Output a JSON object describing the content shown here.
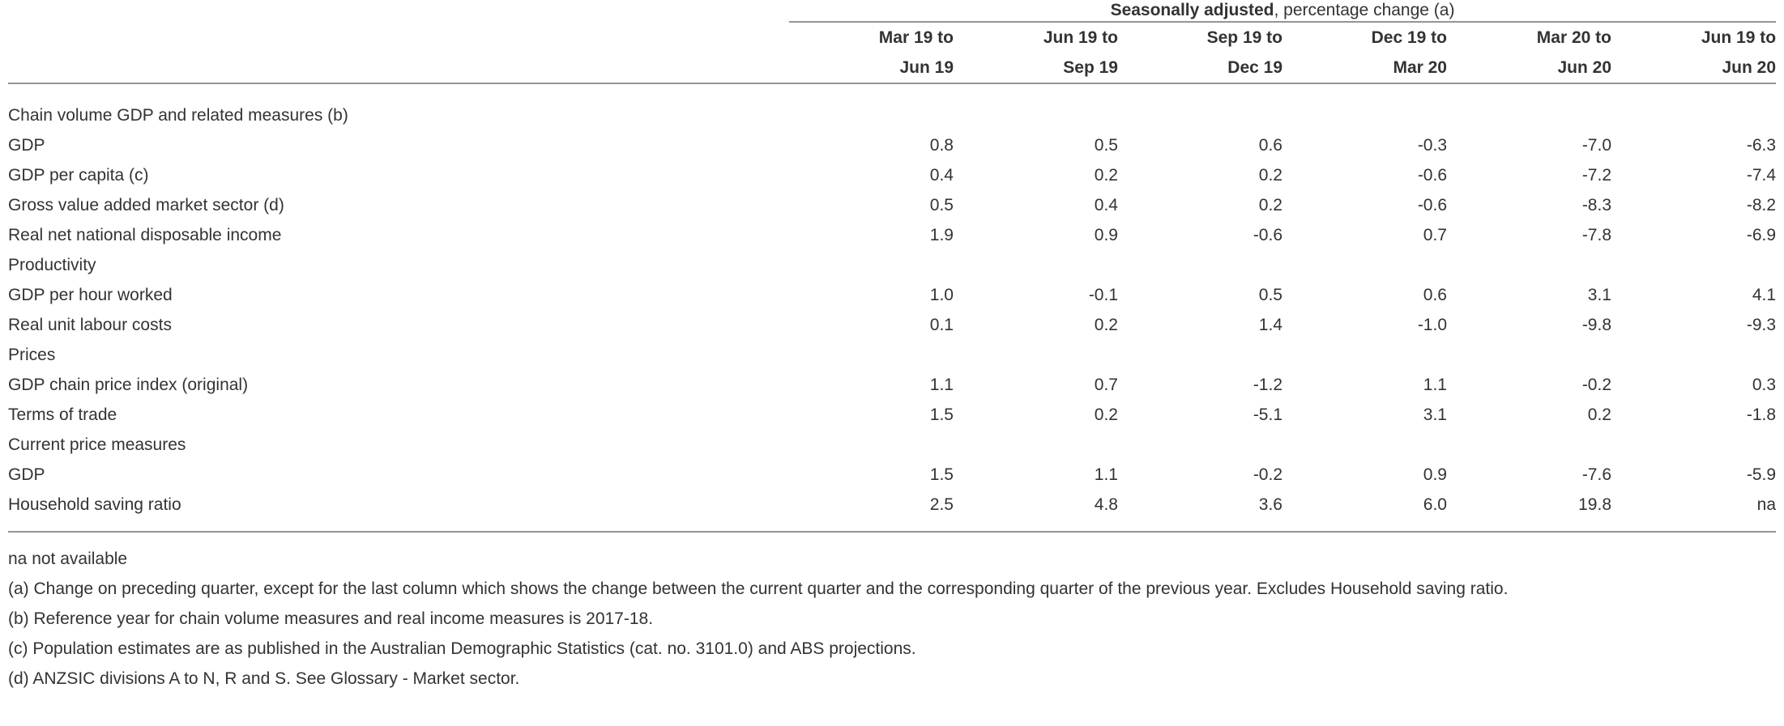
{
  "header": {
    "spanner_bold": "Seasonally adjusted",
    "spanner_rest": ", percentage change (a)",
    "columns": [
      {
        "line1": "Mar 19 to",
        "line2": "Jun 19"
      },
      {
        "line1": "Jun 19 to",
        "line2": "Sep 19"
      },
      {
        "line1": "Sep 19 to",
        "line2": "Dec 19"
      },
      {
        "line1": "Dec 19 to",
        "line2": "Mar 20"
      },
      {
        "line1": "Mar 20 to",
        "line2": "Jun 20"
      },
      {
        "line1": "Jun 19 to",
        "line2": "Jun 20"
      }
    ]
  },
  "sections": [
    {
      "label": "Chain volume GDP and related measures (b)",
      "rows": [
        {
          "label": "GDP",
          "values": [
            "0.8",
            "0.5",
            "0.6",
            "-0.3",
            "-7.0",
            "-6.3"
          ]
        },
        {
          "label": "GDP per capita (c)",
          "values": [
            "0.4",
            "0.2",
            "0.2",
            "-0.6",
            "-7.2",
            "-7.4"
          ]
        },
        {
          "label": "Gross value added market sector (d)",
          "values": [
            "0.5",
            "0.4",
            "0.2",
            "-0.6",
            "-8.3",
            "-8.2"
          ]
        },
        {
          "label": "Real net national disposable income",
          "values": [
            "1.9",
            "0.9",
            "-0.6",
            "0.7",
            "-7.8",
            "-6.9"
          ]
        }
      ]
    },
    {
      "label": "Productivity",
      "rows": [
        {
          "label": "GDP per hour worked",
          "values": [
            "1.0",
            "-0.1",
            "0.5",
            "0.6",
            "3.1",
            "4.1"
          ]
        },
        {
          "label": "Real unit labour costs",
          "values": [
            "0.1",
            "0.2",
            "1.4",
            "-1.0",
            "-9.8",
            "-9.3"
          ]
        }
      ]
    },
    {
      "label": "Prices",
      "rows": [
        {
          "label": "GDP chain price index (original)",
          "values": [
            "1.1",
            "0.7",
            "-1.2",
            "1.1",
            "-0.2",
            "0.3"
          ]
        },
        {
          "label": "Terms of trade",
          "values": [
            "1.5",
            "0.2",
            "-5.1",
            "3.1",
            "0.2",
            "-1.8"
          ]
        }
      ]
    },
    {
      "label": "Current price measures",
      "rows": [
        {
          "label": "GDP",
          "values": [
            "1.5",
            "1.1",
            "-0.2",
            "0.9",
            "-7.6",
            "-5.9"
          ]
        },
        {
          "label": "Household saving ratio",
          "values": [
            "2.5",
            "4.8",
            "3.6",
            "6.0",
            "19.8",
            "na"
          ]
        }
      ]
    }
  ],
  "footnotes": [
    "na not available",
    "(a) Change on preceding quarter, except for the last column which shows the change between the current quarter and the corresponding quarter of the previous year. Excludes Household saving ratio.",
    "(b) Reference year for chain volume measures and real income measures is 2017-18.",
    "(c) Population estimates are as published in the Australian Demographic Statistics (cat. no. 3101.0) and ABS projections.",
    "(d) ANZSIC divisions A to N, R and S. See Glossary - Market sector."
  ],
  "colors": {
    "text": "#333333",
    "rule": "#949494",
    "background": "#ffffff"
  }
}
